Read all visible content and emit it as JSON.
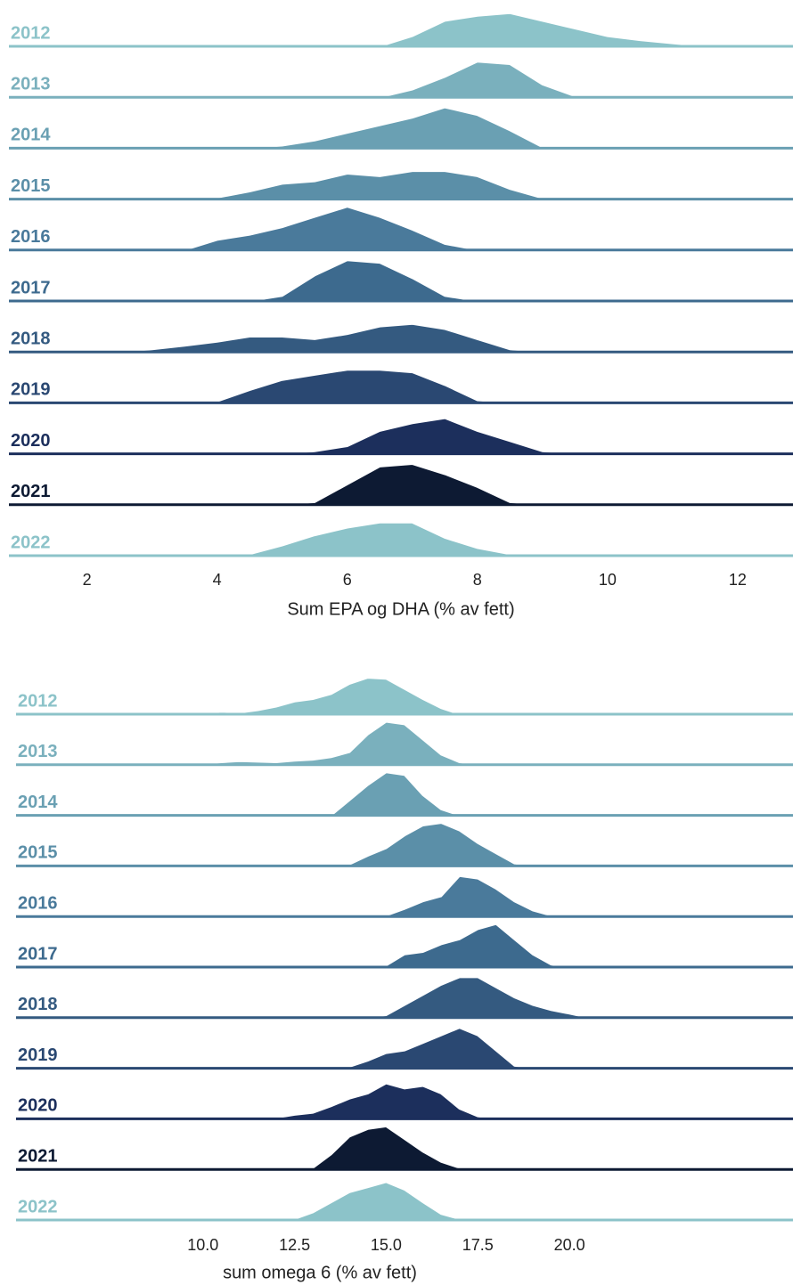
{
  "chart_data": [
    {
      "type": "ridgeline",
      "xlabel": "Sum EPA og DHA (% av fett)",
      "xlim": [
        0.8,
        12.85
      ],
      "xticks": [
        2,
        4,
        6,
        8,
        10,
        12
      ],
      "x": [
        1,
        1.5,
        2,
        2.5,
        3,
        3.5,
        4,
        4.5,
        5,
        5.5,
        6,
        6.5,
        7,
        7.5,
        8,
        8.5,
        9,
        9.5,
        10,
        10.5,
        11,
        11.5,
        12,
        12.5
      ],
      "series": [
        {
          "name": "2012",
          "color": "#8cc3c9",
          "values": [
            0,
            0,
            0,
            0,
            0,
            0,
            0,
            0,
            0,
            0,
            0,
            0,
            0.2,
            0.5,
            0.6,
            0.65,
            0.5,
            0.35,
            0.2,
            0.12,
            0.06,
            0,
            0,
            0
          ]
        },
        {
          "name": "2013",
          "color": "#7ab0bd",
          "values": [
            0,
            0,
            0,
            0,
            0,
            0,
            0,
            0,
            0,
            0,
            0,
            0,
            0.15,
            0.4,
            0.7,
            0.65,
            0.25,
            0.02,
            0,
            0,
            0,
            0,
            0,
            0
          ]
        },
        {
          "name": "2014",
          "color": "#6aa0b3",
          "values": [
            0,
            0,
            0,
            0,
            0,
            0,
            0,
            0,
            0.05,
            0.15,
            0.3,
            0.45,
            0.6,
            0.8,
            0.65,
            0.35,
            0.02,
            0,
            0,
            0,
            0,
            0,
            0,
            0
          ]
        },
        {
          "name": "2015",
          "color": "#5b8fa8",
          "values": [
            0,
            0,
            0,
            0,
            0,
            0,
            0.03,
            0.15,
            0.3,
            0.35,
            0.5,
            0.45,
            0.55,
            0.55,
            0.45,
            0.2,
            0.02,
            0,
            0,
            0,
            0,
            0,
            0,
            0
          ]
        },
        {
          "name": "2016",
          "color": "#4a7a9b",
          "values": [
            0,
            0,
            0,
            0,
            0,
            0,
            0.2,
            0.3,
            0.45,
            0.65,
            0.85,
            0.65,
            0.4,
            0.12,
            0,
            0,
            0,
            0,
            0,
            0,
            0,
            0,
            0,
            0
          ]
        },
        {
          "name": "2017",
          "color": "#3d6a8e",
          "values": [
            0,
            0,
            0,
            0,
            0,
            0,
            0,
            0,
            0.1,
            0.5,
            0.8,
            0.75,
            0.45,
            0.1,
            0,
            0,
            0,
            0,
            0,
            0,
            0,
            0,
            0,
            0
          ]
        },
        {
          "name": "2018",
          "color": "#345a80",
          "values": [
            0,
            0,
            0,
            0,
            0.05,
            0.12,
            0.2,
            0.3,
            0.3,
            0.25,
            0.35,
            0.5,
            0.55,
            0.45,
            0.25,
            0.05,
            0,
            0,
            0,
            0,
            0,
            0,
            0,
            0
          ]
        },
        {
          "name": "2019",
          "color": "#2a4872",
          "values": [
            0,
            0,
            0,
            0,
            0,
            0,
            0.03,
            0.25,
            0.45,
            0.55,
            0.65,
            0.65,
            0.6,
            0.35,
            0.05,
            0,
            0,
            0,
            0,
            0,
            0,
            0,
            0,
            0
          ]
        },
        {
          "name": "2020",
          "color": "#1c2f5c",
          "values": [
            0,
            0,
            0,
            0,
            0,
            0,
            0,
            0,
            0,
            0.05,
            0.15,
            0.45,
            0.6,
            0.7,
            0.45,
            0.25,
            0.05,
            0,
            0,
            0,
            0,
            0,
            0,
            0
          ]
        },
        {
          "name": "2021",
          "color": "#0d1a33",
          "values": [
            0,
            0,
            0,
            0,
            0,
            0,
            0,
            0,
            0,
            0.05,
            0.4,
            0.75,
            0.8,
            0.6,
            0.35,
            0.05,
            0,
            0,
            0,
            0,
            0,
            0,
            0,
            0
          ]
        },
        {
          "name": "2022",
          "color": "#8cc3c9",
          "values": [
            0,
            0,
            0,
            0,
            0,
            0,
            0,
            0.03,
            0.2,
            0.4,
            0.55,
            0.65,
            0.65,
            0.35,
            0.15,
            0.03,
            0,
            0,
            0,
            0,
            0,
            0,
            0,
            0
          ]
        }
      ]
    },
    {
      "type": "ridgeline",
      "xlabel": "sum omega 6 (% av fett)",
      "xlim": [
        4.9,
        26.1
      ],
      "xticks": [
        {
          "value": 10,
          "label": "10.0"
        },
        12.5,
        {
          "value": 15,
          "label": "15.0"
        },
        17.5,
        {
          "value": 20,
          "label": "20.0"
        }
      ],
      "x": [
        6,
        6.5,
        7,
        7.5,
        8,
        8.5,
        9,
        9.5,
        10,
        10.5,
        11,
        11.5,
        12,
        12.5,
        13,
        13.5,
        14,
        14.5,
        15,
        15.5,
        16,
        16.5,
        17,
        17.5,
        18,
        18.5,
        19,
        19.5,
        20,
        20.5,
        21
      ],
      "series": [
        {
          "name": "2012",
          "color": "#8cc3c9",
          "values": [
            0,
            0,
            0,
            0,
            0,
            0,
            0,
            0,
            0.02,
            0.05,
            0.03,
            0.08,
            0.15,
            0.25,
            0.3,
            0.4,
            0.6,
            0.72,
            0.7,
            0.5,
            0.3,
            0.12,
            0,
            0,
            0,
            0,
            0,
            0,
            0,
            0,
            0
          ]
        },
        {
          "name": "2013",
          "color": "#7ab0bd",
          "values": [
            0,
            0,
            0,
            0,
            0,
            0,
            0,
            0,
            0.01,
            0.05,
            0.07,
            0.06,
            0.05,
            0.08,
            0.1,
            0.15,
            0.25,
            0.6,
            0.85,
            0.8,
            0.5,
            0.2,
            0.05,
            0,
            0,
            0,
            0,
            0,
            0,
            0,
            0
          ]
        },
        {
          "name": "2014",
          "color": "#6aa0b3",
          "values": [
            0,
            0,
            0,
            0,
            0,
            0,
            0,
            0,
            0,
            0,
            0,
            0,
            0,
            0,
            0,
            0,
            0.3,
            0.6,
            0.85,
            0.8,
            0.4,
            0.12,
            0,
            0,
            0,
            0,
            0,
            0,
            0,
            0,
            0
          ]
        },
        {
          "name": "2015",
          "color": "#5b8fa8",
          "values": [
            0,
            0,
            0,
            0,
            0,
            0,
            0,
            0,
            0,
            0,
            0,
            0,
            0,
            0,
            0,
            0,
            0.03,
            0.2,
            0.35,
            0.6,
            0.8,
            0.85,
            0.7,
            0.45,
            0.25,
            0.05,
            0,
            0,
            0,
            0,
            0
          ]
        },
        {
          "name": "2016",
          "color": "#4a7a9b",
          "values": [
            0,
            0,
            0,
            0,
            0,
            0,
            0,
            0,
            0,
            0,
            0,
            0,
            0,
            0,
            0,
            0,
            0,
            0,
            0.02,
            0.15,
            0.3,
            0.4,
            0.8,
            0.75,
            0.55,
            0.3,
            0.12,
            0.02,
            0,
            0,
            0
          ]
        },
        {
          "name": "2017",
          "color": "#3d6a8e",
          "values": [
            0,
            0,
            0,
            0,
            0,
            0,
            0,
            0,
            0,
            0,
            0,
            0,
            0,
            0,
            0,
            0,
            0,
            0,
            0.03,
            0.25,
            0.3,
            0.45,
            0.55,
            0.75,
            0.85,
            0.55,
            0.25,
            0.05,
            0,
            0,
            0
          ]
        },
        {
          "name": "2018",
          "color": "#345a80",
          "values": [
            0,
            0,
            0,
            0,
            0,
            0,
            0,
            0,
            0,
            0,
            0,
            0,
            0,
            0,
            0,
            0,
            0,
            0,
            0.05,
            0.25,
            0.45,
            0.65,
            0.8,
            0.8,
            0.6,
            0.4,
            0.25,
            0.15,
            0.08,
            0,
            0
          ]
        },
        {
          "name": "2019",
          "color": "#2a4872",
          "values": [
            0,
            0,
            0,
            0,
            0,
            0,
            0,
            0,
            0,
            0,
            0,
            0,
            0,
            0,
            0,
            0,
            0.03,
            0.15,
            0.3,
            0.35,
            0.5,
            0.65,
            0.8,
            0.65,
            0.35,
            0.05,
            0,
            0,
            0,
            0,
            0
          ]
        },
        {
          "name": "2020",
          "color": "#1c2f5c",
          "values": [
            0,
            0,
            0,
            0,
            0,
            0,
            0,
            0,
            0,
            0,
            0,
            0,
            0.02,
            0.08,
            0.12,
            0.25,
            0.4,
            0.5,
            0.7,
            0.6,
            0.65,
            0.5,
            0.2,
            0.05,
            0,
            0,
            0,
            0,
            0,
            0,
            0
          ]
        },
        {
          "name": "2021",
          "color": "#0d1a33",
          "values": [
            0,
            0,
            0,
            0,
            0,
            0,
            0,
            0,
            0,
            0,
            0,
            0,
            0,
            0,
            0.03,
            0.3,
            0.65,
            0.8,
            0.85,
            0.6,
            0.35,
            0.15,
            0.03,
            0,
            0,
            0,
            0,
            0,
            0,
            0,
            0
          ]
        },
        {
          "name": "2022",
          "color": "#8cc3c9",
          "values": [
            0,
            0,
            0,
            0,
            0,
            0,
            0,
            0,
            0,
            0,
            0,
            0,
            0,
            0.02,
            0.15,
            0.35,
            0.55,
            0.65,
            0.75,
            0.6,
            0.35,
            0.12,
            0.02,
            0,
            0,
            0,
            0,
            0,
            0,
            0,
            0
          ]
        }
      ]
    }
  ]
}
